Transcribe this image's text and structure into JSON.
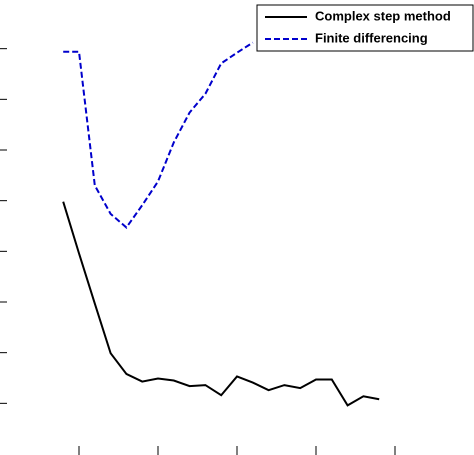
{
  "chart_data": {
    "type": "line",
    "x": [
      1,
      2,
      3,
      4,
      5,
      6,
      7,
      8,
      9,
      10,
      11,
      12,
      13,
      14,
      15,
      16,
      17,
      18,
      19,
      20,
      21
    ],
    "series": [
      {
        "name": "Complex step method",
        "color": "#000000",
        "dash": "solid",
        "values": [
          4.98,
          3.96,
          2.97,
          1.99,
          1.58,
          1.43,
          1.49,
          1.45,
          1.34,
          1.36,
          1.16,
          1.53,
          1.41,
          1.26,
          1.36,
          1.3,
          1.47,
          1.47,
          0.96,
          1.14,
          1.08
        ]
      },
      {
        "name": "Finite differencing",
        "color": "#0000cc",
        "dash": "dashed",
        "values": [
          7.94,
          7.94,
          5.3,
          4.74,
          4.47,
          4.91,
          5.38,
          6.15,
          6.74,
          7.11,
          7.71,
          7.92,
          8.12,
          null,
          null,
          null,
          null,
          null,
          null,
          null,
          null
        ]
      }
    ],
    "xlim": [
      -3,
      27
    ],
    "xticks": [
      2,
      7,
      12,
      17,
      22
    ],
    "ylim": [
      0,
      9
    ],
    "yticks": [
      1,
      2,
      3,
      4,
      5,
      6,
      7,
      8
    ],
    "legend": "upper right"
  }
}
